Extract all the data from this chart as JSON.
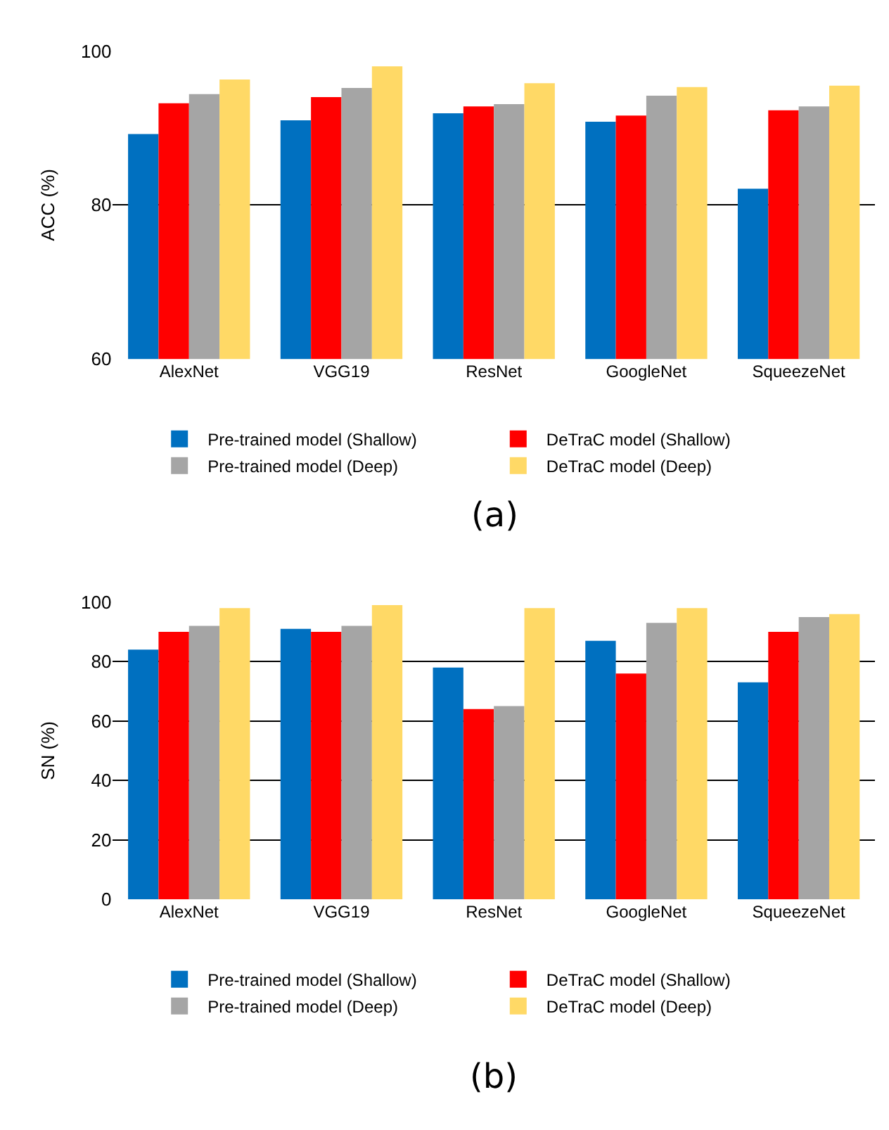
{
  "chart_data": [
    {
      "type": "bar",
      "categories": [
        "AlexNet",
        "VGG19",
        "ResNet",
        "GoogleNet",
        "SqueezeNet"
      ],
      "ylabel": "ACC (%)",
      "ylim": [
        60,
        100
      ],
      "yticks": [
        60,
        80,
        100
      ],
      "grid": "y",
      "legend": "bottom",
      "annotations": [
        "(a)"
      ],
      "series": [
        {
          "name": "Pre-trained model (Shallow)",
          "color": "#0070c0",
          "values": [
            89.2,
            91.0,
            91.9,
            90.8,
            82.1
          ]
        },
        {
          "name": "DeTraC model (Shallow)",
          "color": "#ff0000",
          "values": [
            93.2,
            94.0,
            92.8,
            91.6,
            92.3
          ]
        },
        {
          "name": "Pre-trained model (Deep)",
          "color": "#a5a5a5",
          "values": [
            94.4,
            95.2,
            93.1,
            94.2,
            92.8
          ]
        },
        {
          "name": "DeTraC model (Deep)",
          "color": "#ffd966",
          "values": [
            96.3,
            98.0,
            95.8,
            95.3,
            95.5
          ]
        }
      ]
    },
    {
      "type": "bar",
      "categories": [
        "AlexNet",
        "VGG19",
        "ResNet",
        "GoogleNet",
        "SqueezeNet"
      ],
      "ylabel": "SN (%)",
      "ylim": [
        0,
        100
      ],
      "yticks": [
        0,
        20,
        40,
        60,
        80,
        100
      ],
      "grid": "y",
      "legend": "bottom",
      "annotations": [
        "(b)"
      ],
      "series": [
        {
          "name": "Pre-trained model (Shallow)",
          "color": "#0070c0",
          "values": [
            84,
            91,
            78,
            87,
            73
          ]
        },
        {
          "name": "DeTraC model (Shallow)",
          "color": "#ff0000",
          "values": [
            90,
            90,
            64,
            76,
            90
          ]
        },
        {
          "name": "Pre-trained model (Deep)",
          "color": "#a5a5a5",
          "values": [
            92,
            92,
            65,
            93,
            95
          ]
        },
        {
          "name": "DeTraC model (Deep)",
          "color": "#ffd966",
          "values": [
            98,
            99,
            98,
            98,
            96
          ]
        }
      ]
    }
  ]
}
